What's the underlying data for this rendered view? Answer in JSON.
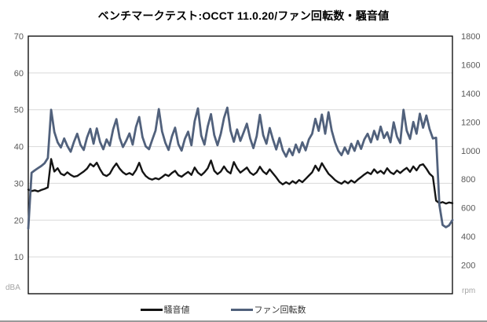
{
  "chart_data": {
    "type": "line",
    "title": "ベンチマークテスト:OCCT 11.0.20/ファン回転数・騒音値",
    "x_axis_tick_labels": [],
    "grid": true,
    "legend_position": "bottom",
    "style": {
      "grid_color": "#d9d9d9",
      "axis_color": "#000000",
      "tick_text_color": "#595959",
      "unit_text_color": "#a6a6a6",
      "background": "#ffffff"
    },
    "left_axis": {
      "unit": "dBA",
      "min": 0,
      "max": 70,
      "tick_interval": 10,
      "ticks": [
        "70",
        "60",
        "50",
        "40",
        "30",
        "20",
        "10"
      ]
    },
    "right_axis": {
      "unit": "rpm",
      "min": 0,
      "max": 1800,
      "tick_interval": 200,
      "ticks": [
        "1800",
        "1600",
        "1400",
        "1200",
        "1000",
        "800",
        "600",
        "400",
        "200"
      ]
    },
    "series": [
      {
        "name": "騒音値",
        "axis": "left",
        "color": "#141414",
        "line_width": 2.4,
        "values": [
          28.3,
          27.9,
          28.1,
          27.8,
          28.2,
          28.5,
          28.9,
          36.6,
          33.2,
          34.1,
          32.6,
          32.2,
          33.0,
          32.3,
          31.8,
          32.0,
          32.6,
          33.2,
          34.0,
          35.3,
          34.6,
          35.6,
          33.8,
          32.4,
          32.0,
          32.6,
          34.2,
          35.4,
          34.0,
          33.0,
          32.4,
          32.8,
          32.3,
          33.6,
          35.6,
          33.2,
          32.0,
          31.3,
          31.0,
          31.4,
          31.1,
          31.7,
          32.4,
          32.0,
          32.8,
          33.4,
          32.2,
          31.8,
          32.5,
          33.1,
          32.3,
          34.3,
          32.9,
          32.2,
          33.0,
          34.1,
          36.2,
          33.4,
          32.5,
          33.2,
          34.6,
          33.3,
          32.7,
          35.8,
          34.1,
          32.9,
          33.6,
          34.3,
          32.9,
          32.3,
          33.0,
          34.5,
          33.2,
          32.5,
          33.8,
          32.7,
          31.6,
          30.4,
          29.7,
          30.3,
          29.8,
          30.6,
          30.0,
          30.9,
          30.3,
          31.2,
          32.1,
          33.0,
          34.8,
          33.4,
          35.5,
          34.0,
          32.6,
          31.8,
          30.9,
          30.3,
          29.9,
          30.6,
          30.0,
          30.8,
          30.2,
          31.0,
          31.7,
          32.4,
          33.0,
          32.5,
          33.8,
          32.8,
          33.4,
          32.6,
          34.1,
          33.0,
          32.5,
          33.5,
          32.8,
          33.6,
          34.2,
          33.1,
          34.6,
          33.5,
          34.9,
          35.2,
          34.0,
          32.6,
          31.8,
          25.3,
          24.6,
          24.9,
          24.5,
          24.8,
          24.6
        ]
      },
      {
        "name": "ファン回転数",
        "axis": "right",
        "color": "#51617c",
        "line_width": 2.8,
        "values": [
          455,
          845,
          862,
          878,
          893,
          912,
          948,
          1285,
          1130,
          1058,
          1022,
          1085,
          1032,
          992,
          1062,
          1118,
          1040,
          1005,
          1092,
          1152,
          1048,
          1155,
          1060,
          1010,
          1078,
          1035,
          1148,
          1220,
          1090,
          1025,
          1068,
          1120,
          1042,
          1165,
          1235,
          1095,
          1030,
          1010,
          1075,
          1140,
          1290,
          1135,
          1055,
          1005,
          1098,
          1160,
          1045,
          1000,
          1082,
          1132,
          1038,
          1205,
          1295,
          1105,
          1042,
          1170,
          1255,
          1108,
          1038,
          1118,
          1228,
          1300,
          1140,
          1062,
          1148,
          1068,
          1128,
          1188,
          1085,
          1018,
          1102,
          1250,
          1108,
          1048,
          1158,
          1078,
          1008,
          1088,
          1002,
          958,
          1012,
          968,
          1042,
          988,
          1058,
          1002,
          1078,
          1118,
          1222,
          1138,
          1252,
          1118,
          1268,
          1140,
          1058,
          1000,
          968,
          1022,
          978,
          1048,
          998,
          1068,
          1012,
          1078,
          1118,
          1058,
          1138,
          1078,
          1168,
          1088,
          1128,
          1058,
          1198,
          1098,
          1052,
          1285,
          1140,
          1082,
          1200,
          1118,
          1258,
          1160,
          1245,
          1150,
          1085,
          1090,
          620,
          480,
          465,
          478,
          515
        ]
      }
    ]
  }
}
